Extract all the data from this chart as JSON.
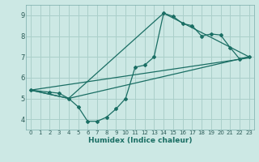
{
  "xlabel": "Humidex (Indice chaleur)",
  "bg_color": "#cce8e4",
  "grid_color": "#aacfca",
  "line_color": "#1a6e64",
  "xlim": [
    -0.5,
    23.5
  ],
  "ylim": [
    3.5,
    9.5
  ],
  "xticks": [
    0,
    1,
    2,
    3,
    4,
    5,
    6,
    7,
    8,
    9,
    10,
    11,
    12,
    13,
    14,
    15,
    16,
    17,
    18,
    19,
    20,
    21,
    22,
    23
  ],
  "yticks": [
    4,
    5,
    6,
    7,
    8,
    9
  ],
  "curve1_x": [
    0,
    2,
    3,
    4,
    5,
    6,
    7,
    8,
    9,
    10,
    11,
    12,
    13,
    14,
    15,
    16,
    17,
    18,
    19,
    20,
    21,
    22,
    23
  ],
  "curve1_y": [
    5.4,
    5.3,
    5.25,
    5.0,
    4.6,
    3.9,
    3.9,
    4.1,
    4.5,
    5.0,
    6.5,
    6.6,
    7.0,
    9.1,
    8.95,
    8.6,
    8.5,
    8.0,
    8.1,
    8.05,
    7.45,
    6.9,
    7.0
  ],
  "curve2_x": [
    0,
    23
  ],
  "curve2_y": [
    5.4,
    6.95
  ],
  "curve3_x": [
    0,
    4,
    23
  ],
  "curve3_y": [
    5.4,
    5.0,
    7.0
  ],
  "curve4_x": [
    0,
    4,
    14,
    23
  ],
  "curve4_y": [
    5.4,
    5.0,
    9.1,
    7.0
  ]
}
